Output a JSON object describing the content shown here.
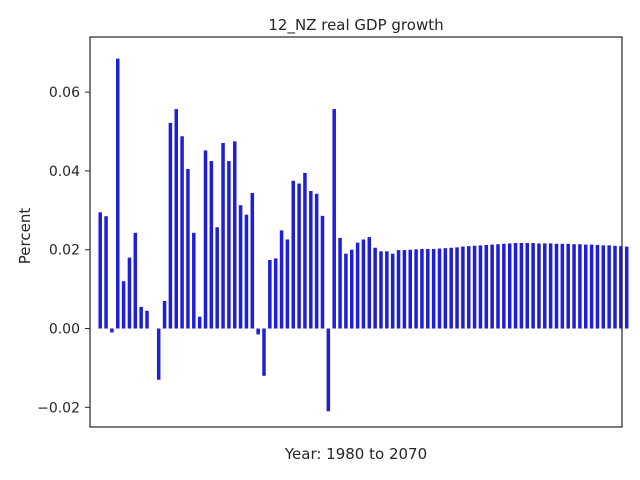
{
  "chart_data": {
    "type": "bar",
    "title": "12_NZ real GDP growth",
    "xlabel": "Year: 1980 to 2070",
    "ylabel": "Percent",
    "x_start": 1980,
    "x_end": 2070,
    "ylim": [
      -0.025,
      0.074
    ],
    "yticks": [
      -0.02,
      0.0,
      0.02,
      0.04,
      0.06
    ],
    "ytick_labels": [
      "−0.02",
      "0.00",
      "0.02",
      "0.04",
      "0.06"
    ],
    "grid": false,
    "bar_color": "#1f1fd6",
    "values": [
      0.0295,
      0.0285,
      -0.001,
      0.0685,
      0.012,
      0.018,
      0.0243,
      0.0055,
      0.0045,
      0.0,
      -0.013,
      0.007,
      0.0522,
      0.0557,
      0.0488,
      0.0405,
      0.0243,
      0.003,
      0.0452,
      0.0425,
      0.0257,
      0.0471,
      0.0425,
      0.0475,
      0.0313,
      0.0289,
      0.0344,
      -0.0015,
      -0.012,
      0.0174,
      0.0178,
      0.0249,
      0.0226,
      0.0375,
      0.0368,
      0.0395,
      0.0349,
      0.0342,
      0.0286,
      -0.021,
      0.0557,
      0.023,
      0.019,
      0.02,
      0.0218,
      0.0226,
      0.0232,
      0.0205,
      0.0196,
      0.0196,
      0.019,
      0.0199,
      0.0199,
      0.02,
      0.0201,
      0.0202,
      0.0202,
      0.0202,
      0.0203,
      0.0204,
      0.0205,
      0.0206,
      0.0208,
      0.0209,
      0.021,
      0.0211,
      0.0212,
      0.0213,
      0.0214,
      0.0215,
      0.0216,
      0.0217,
      0.0217,
      0.0217,
      0.0217,
      0.0216,
      0.0216,
      0.0216,
      0.0215,
      0.0215,
      0.0215,
      0.0214,
      0.0214,
      0.0213,
      0.0213,
      0.0212,
      0.0211,
      0.0211,
      0.021,
      0.0209,
      0.0208
    ]
  }
}
